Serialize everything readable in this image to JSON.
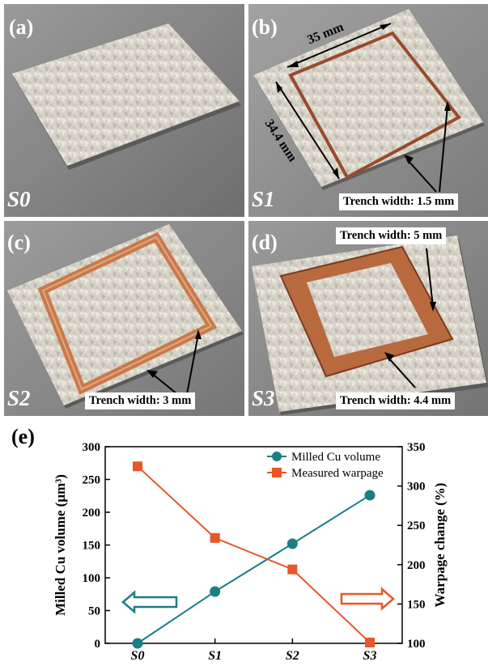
{
  "panels": [
    {
      "label": "(a)",
      "sample": "S0"
    },
    {
      "label": "(b)",
      "sample": "S1"
    },
    {
      "label": "(c)",
      "sample": "S2"
    },
    {
      "label": "(d)",
      "sample": "S3"
    }
  ],
  "annotations": {
    "b_dim_top": "35 mm",
    "b_dim_side": "34.4 mm",
    "b_trench": "Trench width: 1.5 mm",
    "c_trench": "Trench width: 3 mm",
    "d_trench_top": "Trench width: 5 mm",
    "d_trench_bottom": "Trench width: 4.4 mm"
  },
  "colors": {
    "teal": "#1a7f83",
    "orange": "#e8562a",
    "copper": "#c97a4a",
    "copper_dark": "#7a3a1e"
  },
  "chart_label": "(e)",
  "chart_data": {
    "type": "line",
    "categories": [
      "S0",
      "S1",
      "S2",
      "S3"
    ],
    "series": [
      {
        "name": "Milled Cu volume",
        "axis": "left",
        "values": [
          0,
          79,
          152,
          226
        ],
        "color": "#1a7f83",
        "marker": "circle"
      },
      {
        "name": "Measured warpage",
        "axis": "right",
        "values": [
          325,
          234,
          194,
          101
        ],
        "color": "#e8562a",
        "marker": "square"
      }
    ],
    "ylabel_left": "Milled Cu volume (μm³)",
    "ylabel_right": "Warpage change (%)",
    "ylim_left": [
      0,
      300
    ],
    "yticks_left": [
      0,
      50,
      100,
      150,
      200,
      250,
      300
    ],
    "ylim_right": [
      100,
      350
    ],
    "yticks_right": [
      100,
      150,
      200,
      250,
      300,
      350
    ],
    "legend_position": "top-right",
    "grid": false,
    "arrows": [
      "left",
      "right"
    ]
  }
}
